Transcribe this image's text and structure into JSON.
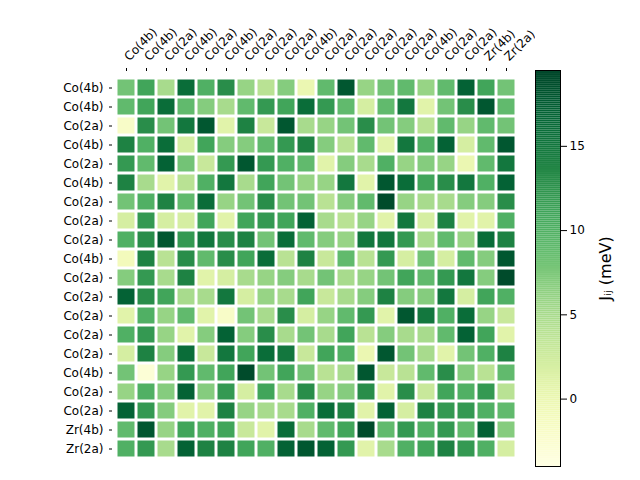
{
  "chart_data": {
    "type": "heatmap",
    "x_labels": [
      "Co(4b)",
      "Co(4b)",
      "Co(2a)",
      "Co(4b)",
      "Co(2a)",
      "Co(4b)",
      "Co(2a)",
      "Co(2a)",
      "Co(2a)",
      "Co(4b)",
      "Co(2a)",
      "Co(2a)",
      "Co(2a)",
      "Co(2a)",
      "Co(2a)",
      "Co(4b)",
      "Co(2a)",
      "Co(2a)",
      "Zr(4b)",
      "Zr(2a)"
    ],
    "y_labels": [
      "Co(4b)",
      "Co(4b)",
      "Co(2a)",
      "Co(4b)",
      "Co(2a)",
      "Co(4b)",
      "Co(2a)",
      "Co(2a)",
      "Co(2a)",
      "Co(4b)",
      "Co(2a)",
      "Co(2a)",
      "Co(2a)",
      "Co(2a)",
      "Co(2a)",
      "Co(4b)",
      "Co(2a)",
      "Co(2a)",
      "Zr(4b)",
      "Zr(2a)"
    ],
    "values": [
      [
        8,
        11,
        5,
        16,
        10,
        13,
        6,
        4,
        7,
        0,
        9,
        18,
        6,
        8,
        9,
        6,
        9,
        17,
        11,
        8
      ],
      [
        9,
        11,
        16,
        9,
        7,
        5,
        9,
        12,
        11,
        16,
        12,
        9,
        2,
        9,
        15,
        1,
        8,
        13,
        18,
        9
      ],
      [
        -2,
        13,
        8,
        15,
        18,
        1,
        14,
        3,
        18,
        5,
        6,
        8,
        13,
        8,
        7,
        4,
        9,
        6,
        9,
        8
      ],
      [
        14,
        10,
        16,
        2,
        11,
        7,
        7,
        9,
        12,
        14,
        7,
        4,
        9,
        1,
        15,
        10,
        17,
        2,
        9,
        18
      ],
      [
        12,
        9,
        17,
        8,
        3,
        12,
        18,
        12,
        10,
        9,
        1,
        7,
        5,
        10,
        6,
        7,
        6,
        0,
        9,
        15
      ],
      [
        14,
        5,
        1,
        4,
        10,
        15,
        5,
        11,
        8,
        6,
        6,
        15,
        1,
        18,
        16,
        11,
        13,
        15,
        10,
        17
      ],
      [
        8,
        10,
        14,
        9,
        16,
        6,
        8,
        13,
        8,
        8,
        4,
        7,
        9,
        19,
        6,
        5,
        5,
        7,
        7,
        13
      ],
      [
        2,
        12,
        2,
        2,
        11,
        1,
        11,
        12,
        11,
        17,
        5,
        4,
        6,
        1,
        15,
        2,
        14,
        1,
        1,
        10
      ],
      [
        10,
        13,
        18,
        12,
        15,
        13,
        14,
        8,
        16,
        9,
        7,
        6,
        15,
        15,
        12,
        5,
        9,
        6,
        16,
        14
      ],
      [
        -1,
        14,
        4,
        13,
        9,
        13,
        11,
        16,
        4,
        14,
        3,
        9,
        4,
        12,
        2,
        8,
        2,
        9,
        7,
        18
      ],
      [
        7,
        12,
        5,
        14,
        1,
        2,
        5,
        6,
        7,
        5,
        8,
        5,
        6,
        8,
        11,
        9,
        12,
        15,
        7,
        19
      ],
      [
        17,
        13,
        11,
        5,
        5,
        15,
        2,
        6,
        5,
        11,
        3,
        5,
        7,
        14,
        7,
        7,
        15,
        2,
        11,
        10
      ],
      [
        1,
        10,
        6,
        9,
        1,
        -2,
        8,
        5,
        13,
        2,
        6,
        9,
        12,
        1,
        18,
        15,
        10,
        16,
        6,
        3
      ],
      [
        10,
        12,
        6,
        1,
        7,
        17,
        7,
        13,
        5,
        8,
        5,
        11,
        4,
        7,
        5,
        5,
        9,
        17,
        11,
        1
      ],
      [
        2,
        14,
        7,
        16,
        3,
        15,
        11,
        16,
        15,
        3,
        11,
        10,
        0,
        18,
        8,
        5,
        1,
        8,
        10,
        14
      ],
      [
        8,
        -3,
        6,
        12,
        9,
        11,
        19,
        8,
        11,
        8,
        4,
        5,
        18,
        3,
        4,
        9,
        13,
        7,
        4,
        9
      ],
      [
        6,
        10,
        7,
        17,
        7,
        12,
        2,
        11,
        5,
        13,
        6,
        7,
        13,
        1,
        13,
        3,
        11,
        10,
        12,
        4
      ],
      [
        17,
        12,
        7,
        1,
        1,
        14,
        6,
        5,
        5,
        10,
        16,
        14,
        1,
        17,
        2,
        14,
        12,
        12,
        10,
        9
      ],
      [
        9,
        18,
        6,
        11,
        10,
        11,
        3,
        1,
        16,
        5,
        9,
        11,
        19,
        9,
        12,
        10,
        12,
        9,
        17,
        7
      ],
      [
        10,
        12,
        5,
        17,
        14,
        14,
        11,
        10,
        17,
        18,
        17,
        12,
        1,
        5,
        10,
        11,
        14,
        12,
        10,
        2
      ]
    ],
    "colorbar": {
      "label": "Jᵢⱼ (meV)",
      "range": [
        -4,
        19.5
      ],
      "ticks": [
        0,
        5,
        10,
        15
      ]
    }
  }
}
